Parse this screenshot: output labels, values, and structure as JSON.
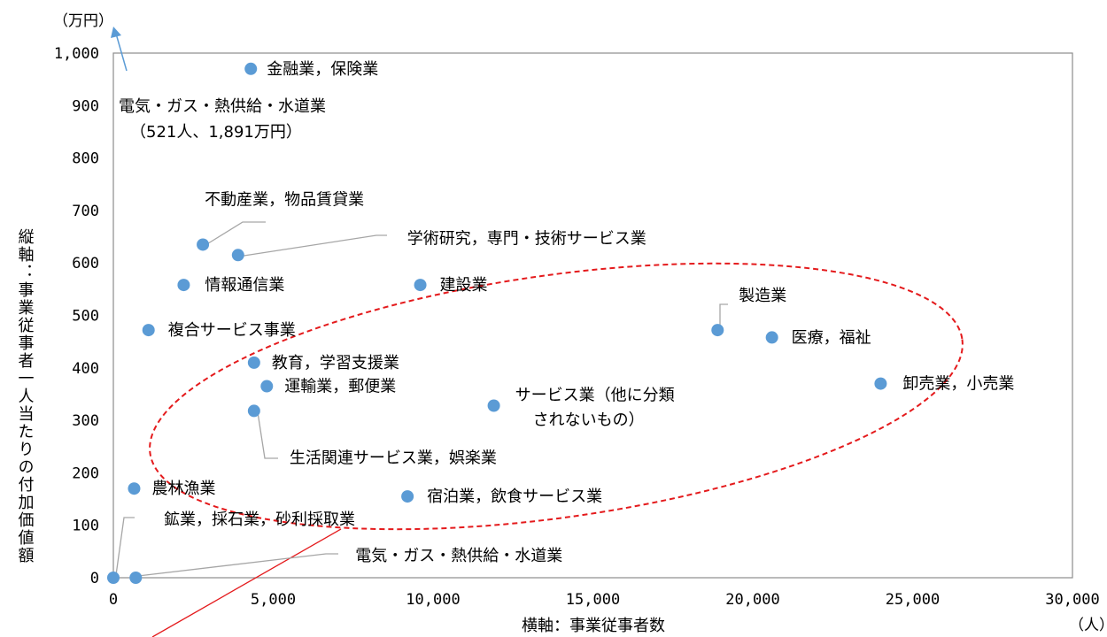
{
  "chart_data": {
    "type": "scatter",
    "xlabel": "横軸：事業従事者数",
    "ylabel": "縦軸：事業従事者一人当たりの付加価値額",
    "x_unit": "（人）",
    "y_unit": "（万円）",
    "xlim": [
      0,
      30000
    ],
    "ylim": [
      0,
      1000
    ],
    "x_ticks": [
      "0",
      "5,000",
      "10,000",
      "15,000",
      "20,000",
      "25,000",
      "30,000"
    ],
    "y_ticks": [
      "0",
      "100",
      "200",
      "300",
      "400",
      "500",
      "600",
      "700",
      "800",
      "900",
      "1,000"
    ],
    "grid": false,
    "marker_color": "#5b9bd5",
    "ellipse_color": "#e41a1c",
    "points": [
      {
        "label": "金融業，保険業",
        "x": 4300,
        "y": 970
      },
      {
        "label": "不動産業，物品賃貸業",
        "x": 2800,
        "y": 635
      },
      {
        "label": "学術研究，専門・技術サービス業",
        "x": 3900,
        "y": 615
      },
      {
        "label": "情報通信業",
        "x": 2200,
        "y": 558
      },
      {
        "label": "建設業",
        "x": 9600,
        "y": 558
      },
      {
        "label": "複合サービス事業",
        "x": 1100,
        "y": 472
      },
      {
        "label": "製造業",
        "x": 18900,
        "y": 472
      },
      {
        "label": "医療，福祉",
        "x": 20600,
        "y": 458
      },
      {
        "label": "教育，学習支援業",
        "x": 4400,
        "y": 410
      },
      {
        "label": "運輸業，郵便業",
        "x": 4800,
        "y": 365
      },
      {
        "label": "卸売業，小売業",
        "x": 24000,
        "y": 370
      },
      {
        "label": "サービス業（他に分類されないもの）",
        "x": 11900,
        "y": 328
      },
      {
        "label": "生活関連サービス業，娯楽業",
        "x": 4400,
        "y": 318
      },
      {
        "label": "農林漁業",
        "x": 650,
        "y": 170
      },
      {
        "label": "宿泊業，飲食サービス業",
        "x": 9200,
        "y": 155
      },
      {
        "label": "鉱業，採石業，砂利採取業",
        "x": 0,
        "y": 0
      },
      {
        "label": "電気・ガス・熱供給・水道業",
        "x": 700,
        "y": 0
      }
    ],
    "annotations": {
      "offscale_line1": "電気・ガス・熱供給・水道業",
      "offscale_line2": "（521人、1,891万円）",
      "label_service_line1": "サービス業（他に分類",
      "label_service_line2": "されないもの）"
    }
  }
}
